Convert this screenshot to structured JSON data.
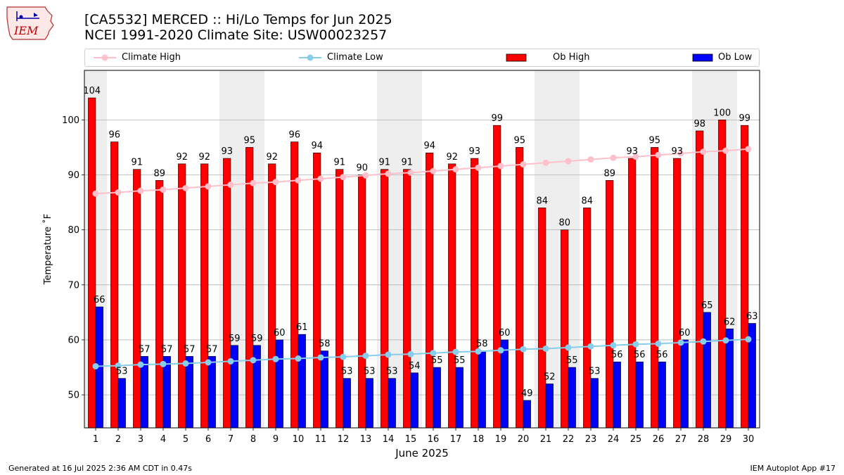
{
  "header": {
    "title_line1": "[CA5532] MERCED :: Hi/Lo Temps for Jun 2025",
    "title_line2": "NCEI 1991-2020 Climate Site: USW00023257",
    "logo_text": "IEM"
  },
  "footer": {
    "generated": "Generated at 16 Jul 2025 2:36 AM CDT in 0.47s",
    "app": "IEM Autoplot App #17"
  },
  "legend": {
    "climate_high": "Climate High",
    "climate_low": "Climate Low",
    "ob_high": "Ob High",
    "ob_low": "Ob Low"
  },
  "colors": {
    "ob_high": "#ff0000",
    "ob_low": "#0000ff",
    "climate_high": "#ffc0cb",
    "climate_low": "#87ceeb",
    "weekend_shade": "#eeeeee",
    "grid": "#b0b0b0"
  },
  "chart_data": {
    "type": "bar",
    "xlabel": "June 2025",
    "ylabel": "Temperature ˚F",
    "ylim": [
      44,
      109
    ],
    "yticks": [
      50,
      60,
      70,
      80,
      90,
      100
    ],
    "grid": "horizontal",
    "legend_position": "top",
    "categories": [
      "1",
      "2",
      "3",
      "4",
      "5",
      "6",
      "7",
      "8",
      "9",
      "10",
      "11",
      "12",
      "13",
      "14",
      "15",
      "16",
      "17",
      "18",
      "19",
      "20",
      "21",
      "22",
      "23",
      "24",
      "25",
      "26",
      "27",
      "28",
      "29",
      "30"
    ],
    "shaded_days": [
      1,
      7,
      8,
      14,
      15,
      21,
      22,
      28,
      29
    ],
    "series": [
      {
        "name": "Ob High",
        "kind": "bar",
        "values": [
          104,
          96,
          91,
          89,
          92,
          92,
          93,
          95,
          92,
          96,
          94,
          91,
          90,
          91,
          91,
          94,
          92,
          93,
          99,
          95,
          84,
          80,
          84,
          89,
          93,
          95,
          93,
          98,
          100,
          99
        ]
      },
      {
        "name": "Ob Low",
        "kind": "bar",
        "values": [
          66,
          53,
          57,
          57,
          57,
          57,
          59,
          59,
          60,
          61,
          58,
          53,
          53,
          53,
          54,
          55,
          55,
          58,
          60,
          49,
          52,
          55,
          53,
          56,
          56,
          56,
          60,
          65,
          62,
          63
        ]
      },
      {
        "name": "Climate High",
        "kind": "line",
        "values": [
          86.6,
          86.8,
          87.1,
          87.3,
          87.6,
          87.9,
          88.2,
          88.5,
          88.7,
          89.0,
          89.3,
          89.6,
          89.9,
          90.2,
          90.4,
          90.7,
          91.0,
          91.3,
          91.6,
          91.9,
          92.2,
          92.5,
          92.8,
          93.1,
          93.3,
          93.6,
          93.9,
          94.2,
          94.4,
          94.7
        ]
      },
      {
        "name": "Climate Low",
        "kind": "line",
        "values": [
          55.2,
          55.3,
          55.5,
          55.6,
          55.7,
          55.9,
          56.1,
          56.3,
          56.5,
          56.6,
          56.8,
          56.9,
          57.1,
          57.3,
          57.4,
          57.6,
          57.8,
          57.9,
          58.1,
          58.3,
          58.4,
          58.6,
          58.8,
          59.0,
          59.2,
          59.3,
          59.5,
          59.7,
          59.9,
          60.1
        ]
      }
    ]
  }
}
